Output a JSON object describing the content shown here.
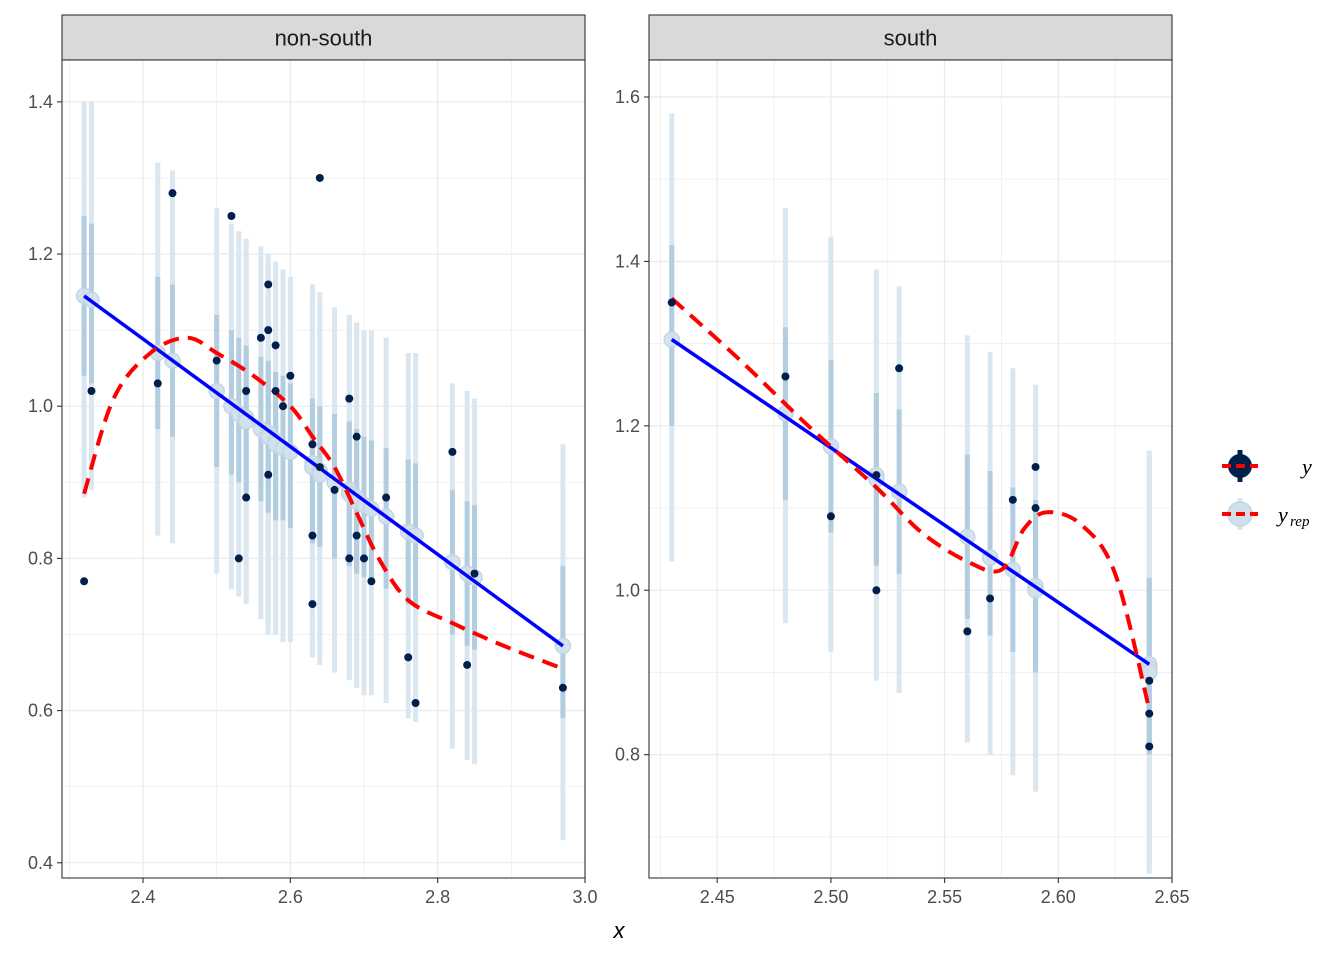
{
  "chart_data": {
    "type": "scatter",
    "xlabel": "x",
    "legend": {
      "placement": "right",
      "entries": [
        {
          "key": "y",
          "label": "y",
          "sub": "",
          "point_color": "#011f4b",
          "line_color": "#ff0000",
          "style": "dashed"
        },
        {
          "key": "yrep",
          "label": "y",
          "sub": "rep",
          "point_color": "#d1e1ec",
          "line_color": "#0000ff",
          "style": "solid"
        }
      ]
    },
    "colors": {
      "y_point": "#011f4b",
      "yrep_point": "#d1e1ec",
      "interval_outer": "#dbe7f0",
      "interval_inner": "#b3cde0",
      "trend_y": "#ff0000",
      "trend_yrep": "#0000ff",
      "strip_bg": "#d9d9d9",
      "grid": "#ebebeb"
    },
    "panels": [
      {
        "title": "non-south",
        "xlim": [
          2.29,
          3.0
        ],
        "ylim": [
          0.38,
          1.455
        ],
        "xticks": [
          2.4,
          2.6,
          2.8,
          3.0
        ],
        "xtick_labels": [
          "2.4",
          "2.6",
          "2.8",
          "3.0"
        ],
        "yticks": [
          0.4,
          0.6,
          0.8,
          1.0,
          1.2,
          1.4
        ],
        "ytick_labels": [
          "0.4",
          "0.6",
          "0.8",
          "1.0",
          "1.2",
          "1.4"
        ],
        "points": [
          {
            "x": 2.32,
            "y": 0.77,
            "yrep": 1.145,
            "l50": 1.04,
            "h50": 1.25,
            "l90": 0.88,
            "h90": 1.4
          },
          {
            "x": 2.33,
            "y": 1.02,
            "yrep": 1.14,
            "l50": 1.03,
            "h50": 1.24,
            "l90": 0.89,
            "h90": 1.4
          },
          {
            "x": 2.42,
            "y": 1.03,
            "yrep": 1.07,
            "l50": 0.97,
            "h50": 1.17,
            "l90": 0.83,
            "h90": 1.32
          },
          {
            "x": 2.44,
            "y": 1.28,
            "yrep": 1.06,
            "l50": 0.96,
            "h50": 1.16,
            "l90": 0.82,
            "h90": 1.31
          },
          {
            "x": 2.5,
            "y": 1.06,
            "yrep": 1.02,
            "l50": 0.92,
            "h50": 1.12,
            "l90": 0.78,
            "h90": 1.26
          },
          {
            "x": 2.52,
            "y": 1.25,
            "yrep": 1.0,
            "l50": 0.91,
            "h50": 1.1,
            "l90": 0.76,
            "h90": 1.24
          },
          {
            "x": 2.53,
            "y": 0.8,
            "yrep": 0.99,
            "l50": 0.9,
            "h50": 1.09,
            "l90": 0.75,
            "h90": 1.23
          },
          {
            "x": 2.54,
            "y": 0.88,
            "yrep": 0.985,
            "l50": 0.89,
            "h50": 1.08,
            "l90": 0.74,
            "h90": 1.22
          },
          {
            "x": 2.54,
            "y": 1.02,
            "yrep": 0.98,
            "l50": 0.885,
            "h50": 1.075,
            "l90": 0.74,
            "h90": 1.22
          },
          {
            "x": 2.56,
            "y": 1.09,
            "yrep": 0.97,
            "l50": 0.875,
            "h50": 1.065,
            "l90": 0.72,
            "h90": 1.21
          },
          {
            "x": 2.57,
            "y": 1.16,
            "yrep": 0.965,
            "l50": 0.87,
            "h50": 1.06,
            "l90": 0.71,
            "h90": 1.2
          },
          {
            "x": 2.57,
            "y": 1.1,
            "yrep": 0.96,
            "l50": 0.865,
            "h50": 1.055,
            "l90": 0.71,
            "h90": 1.2
          },
          {
            "x": 2.57,
            "y": 0.91,
            "yrep": 0.96,
            "l50": 0.86,
            "h50": 1.05,
            "l90": 0.7,
            "h90": 1.19
          },
          {
            "x": 2.58,
            "y": 1.08,
            "yrep": 0.955,
            "l50": 0.855,
            "h50": 1.045,
            "l90": 0.7,
            "h90": 1.19
          },
          {
            "x": 2.58,
            "y": 1.02,
            "yrep": 0.95,
            "l50": 0.85,
            "h50": 1.04,
            "l90": 0.7,
            "h90": 1.19
          },
          {
            "x": 2.59,
            "y": 1.0,
            "yrep": 0.945,
            "l50": 0.85,
            "h50": 1.04,
            "l90": 0.69,
            "h90": 1.18
          },
          {
            "x": 2.6,
            "y": 1.04,
            "yrep": 0.94,
            "l50": 0.84,
            "h50": 1.03,
            "l90": 0.69,
            "h90": 1.17
          },
          {
            "x": 2.63,
            "y": 0.95,
            "yrep": 0.925,
            "l50": 0.83,
            "h50": 1.01,
            "l90": 0.67,
            "h90": 1.16
          },
          {
            "x": 2.63,
            "y": 0.83,
            "yrep": 0.92,
            "l50": 0.825,
            "h50": 1.005,
            "l90": 0.67,
            "h90": 1.15
          },
          {
            "x": 2.63,
            "y": 0.74,
            "yrep": 0.92,
            "l50": 0.82,
            "h50": 1.0,
            "l90": 0.67,
            "h90": 1.15
          },
          {
            "x": 2.64,
            "y": 1.3,
            "yrep": 0.915,
            "l50": 0.82,
            "h50": 1.0,
            "l90": 0.67,
            "h90": 1.15
          },
          {
            "x": 2.64,
            "y": 0.92,
            "yrep": 0.91,
            "l50": 0.815,
            "h50": 0.995,
            "l90": 0.66,
            "h90": 1.14
          },
          {
            "x": 2.66,
            "y": 0.89,
            "yrep": 0.9,
            "l50": 0.8,
            "h50": 0.99,
            "l90": 0.65,
            "h90": 1.13
          },
          {
            "x": 2.68,
            "y": 1.01,
            "yrep": 0.89,
            "l50": 0.79,
            "h50": 0.98,
            "l90": 0.64,
            "h90": 1.12
          },
          {
            "x": 2.68,
            "y": 0.8,
            "yrep": 0.885,
            "l50": 0.79,
            "h50": 0.975,
            "l90": 0.64,
            "h90": 1.12
          },
          {
            "x": 2.69,
            "y": 0.96,
            "yrep": 0.88,
            "l50": 0.785,
            "h50": 0.97,
            "l90": 0.63,
            "h90": 1.11
          },
          {
            "x": 2.69,
            "y": 0.83,
            "yrep": 0.875,
            "l50": 0.78,
            "h50": 0.965,
            "l90": 0.63,
            "h90": 1.11
          },
          {
            "x": 2.7,
            "y": 0.8,
            "yrep": 0.87,
            "l50": 0.775,
            "h50": 0.96,
            "l90": 0.62,
            "h90": 1.1
          },
          {
            "x": 2.71,
            "y": 0.77,
            "yrep": 0.865,
            "l50": 0.77,
            "h50": 0.955,
            "l90": 0.62,
            "h90": 1.1
          },
          {
            "x": 2.73,
            "y": 0.88,
            "yrep": 0.855,
            "l50": 0.76,
            "h50": 0.945,
            "l90": 0.61,
            "h90": 1.09
          },
          {
            "x": 2.76,
            "y": 0.67,
            "yrep": 0.835,
            "l50": 0.74,
            "h50": 0.93,
            "l90": 0.59,
            "h90": 1.07
          },
          {
            "x": 2.77,
            "y": 0.61,
            "yrep": 0.83,
            "l50": 0.735,
            "h50": 0.925,
            "l90": 0.585,
            "h90": 1.07
          },
          {
            "x": 2.82,
            "y": 0.94,
            "yrep": 0.795,
            "l50": 0.7,
            "h50": 0.89,
            "l90": 0.55,
            "h90": 1.03
          },
          {
            "x": 2.84,
            "y": 0.66,
            "yrep": 0.78,
            "l50": 0.685,
            "h50": 0.875,
            "l90": 0.535,
            "h90": 1.02
          },
          {
            "x": 2.85,
            "y": 0.78,
            "yrep": 0.775,
            "l50": 0.68,
            "h50": 0.87,
            "l90": 0.53,
            "h90": 1.01
          },
          {
            "x": 2.97,
            "y": 0.63,
            "yrep": 0.685,
            "l50": 0.59,
            "h50": 0.79,
            "l90": 0.43,
            "h90": 0.95
          }
        ],
        "trend_yrep": [
          [
            2.32,
            1.145
          ],
          [
            2.97,
            0.685
          ]
        ],
        "trend_y": [
          [
            2.32,
            0.885
          ],
          [
            2.36,
            1.01
          ],
          [
            2.41,
            1.07
          ],
          [
            2.46,
            1.09
          ],
          [
            2.5,
            1.07
          ],
          [
            2.55,
            1.04
          ],
          [
            2.6,
            1.0
          ],
          [
            2.63,
            0.96
          ],
          [
            2.66,
            0.92
          ],
          [
            2.69,
            0.86
          ],
          [
            2.72,
            0.8
          ],
          [
            2.76,
            0.745
          ],
          [
            2.82,
            0.715
          ],
          [
            2.89,
            0.685
          ],
          [
            2.97,
            0.655
          ]
        ]
      },
      {
        "title": "south",
        "xlim": [
          2.42,
          2.65
        ],
        "ylim": [
          0.65,
          1.645
        ],
        "xticks": [
          2.45,
          2.5,
          2.55,
          2.6,
          2.65
        ],
        "xtick_labels": [
          "2.45",
          "2.50",
          "2.55",
          "2.60",
          "2.65"
        ],
        "yticks": [
          0.8,
          1.0,
          1.2,
          1.4,
          1.6
        ],
        "ytick_labels": [
          "0.8",
          "1.0",
          "1.2",
          "1.4",
          "1.6"
        ],
        "points": [
          {
            "x": 2.43,
            "y": 1.35,
            "yrep": 1.305,
            "l50": 1.2,
            "h50": 1.42,
            "l90": 1.035,
            "h90": 1.58
          },
          {
            "x": 2.48,
            "y": 1.26,
            "yrep": 1.215,
            "l50": 1.11,
            "h50": 1.32,
            "l90": 0.96,
            "h90": 1.465
          },
          {
            "x": 2.5,
            "y": 1.09,
            "yrep": 1.175,
            "l50": 1.07,
            "h50": 1.28,
            "l90": 0.925,
            "h90": 1.43
          },
          {
            "x": 2.52,
            "y": 1.14,
            "yrep": 1.14,
            "l50": 1.035,
            "h50": 1.24,
            "l90": 0.895,
            "h90": 1.39
          },
          {
            "x": 2.52,
            "y": 1.0,
            "yrep": 1.135,
            "l50": 1.03,
            "h50": 1.235,
            "l90": 0.89,
            "h90": 1.385
          },
          {
            "x": 2.53,
            "y": 1.27,
            "yrep": 1.12,
            "l50": 1.02,
            "h50": 1.22,
            "l90": 0.875,
            "h90": 1.37
          },
          {
            "x": 2.56,
            "y": 0.95,
            "yrep": 1.065,
            "l50": 0.965,
            "h50": 1.165,
            "l90": 0.815,
            "h90": 1.31
          },
          {
            "x": 2.57,
            "y": 0.99,
            "yrep": 1.04,
            "l50": 0.945,
            "h50": 1.145,
            "l90": 0.8,
            "h90": 1.29
          },
          {
            "x": 2.58,
            "y": 1.11,
            "yrep": 1.025,
            "l50": 0.925,
            "h50": 1.125,
            "l90": 0.775,
            "h90": 1.27
          },
          {
            "x": 2.59,
            "y": 1.15,
            "yrep": 1.005,
            "l50": 0.905,
            "h50": 1.11,
            "l90": 0.76,
            "h90": 1.25
          },
          {
            "x": 2.59,
            "y": 1.1,
            "yrep": 1.0,
            "l50": 0.9,
            "h50": 1.105,
            "l90": 0.755,
            "h90": 1.25
          },
          {
            "x": 2.64,
            "y": 0.89,
            "yrep": 0.91,
            "l50": 0.81,
            "h50": 1.015,
            "l90": 0.665,
            "h90": 1.17
          },
          {
            "x": 2.64,
            "y": 0.85,
            "yrep": 0.905,
            "l50": 0.805,
            "h50": 1.01,
            "l90": 0.66,
            "h90": 1.165
          },
          {
            "x": 2.64,
            "y": 0.81,
            "yrep": 0.9,
            "l50": 0.8,
            "h50": 1.005,
            "l90": 0.655,
            "h90": 1.16
          }
        ],
        "trend_yrep": [
          [
            2.43,
            1.305
          ],
          [
            2.64,
            0.91
          ]
        ],
        "trend_y": [
          [
            2.43,
            1.355
          ],
          [
            2.46,
            1.28
          ],
          [
            2.49,
            1.2
          ],
          [
            2.52,
            1.125
          ],
          [
            2.54,
            1.07
          ],
          [
            2.56,
            1.035
          ],
          [
            2.575,
            1.025
          ],
          [
            2.585,
            1.075
          ],
          [
            2.595,
            1.095
          ],
          [
            2.61,
            1.08
          ],
          [
            2.625,
            1.02
          ],
          [
            2.64,
            0.855
          ]
        ]
      }
    ]
  }
}
